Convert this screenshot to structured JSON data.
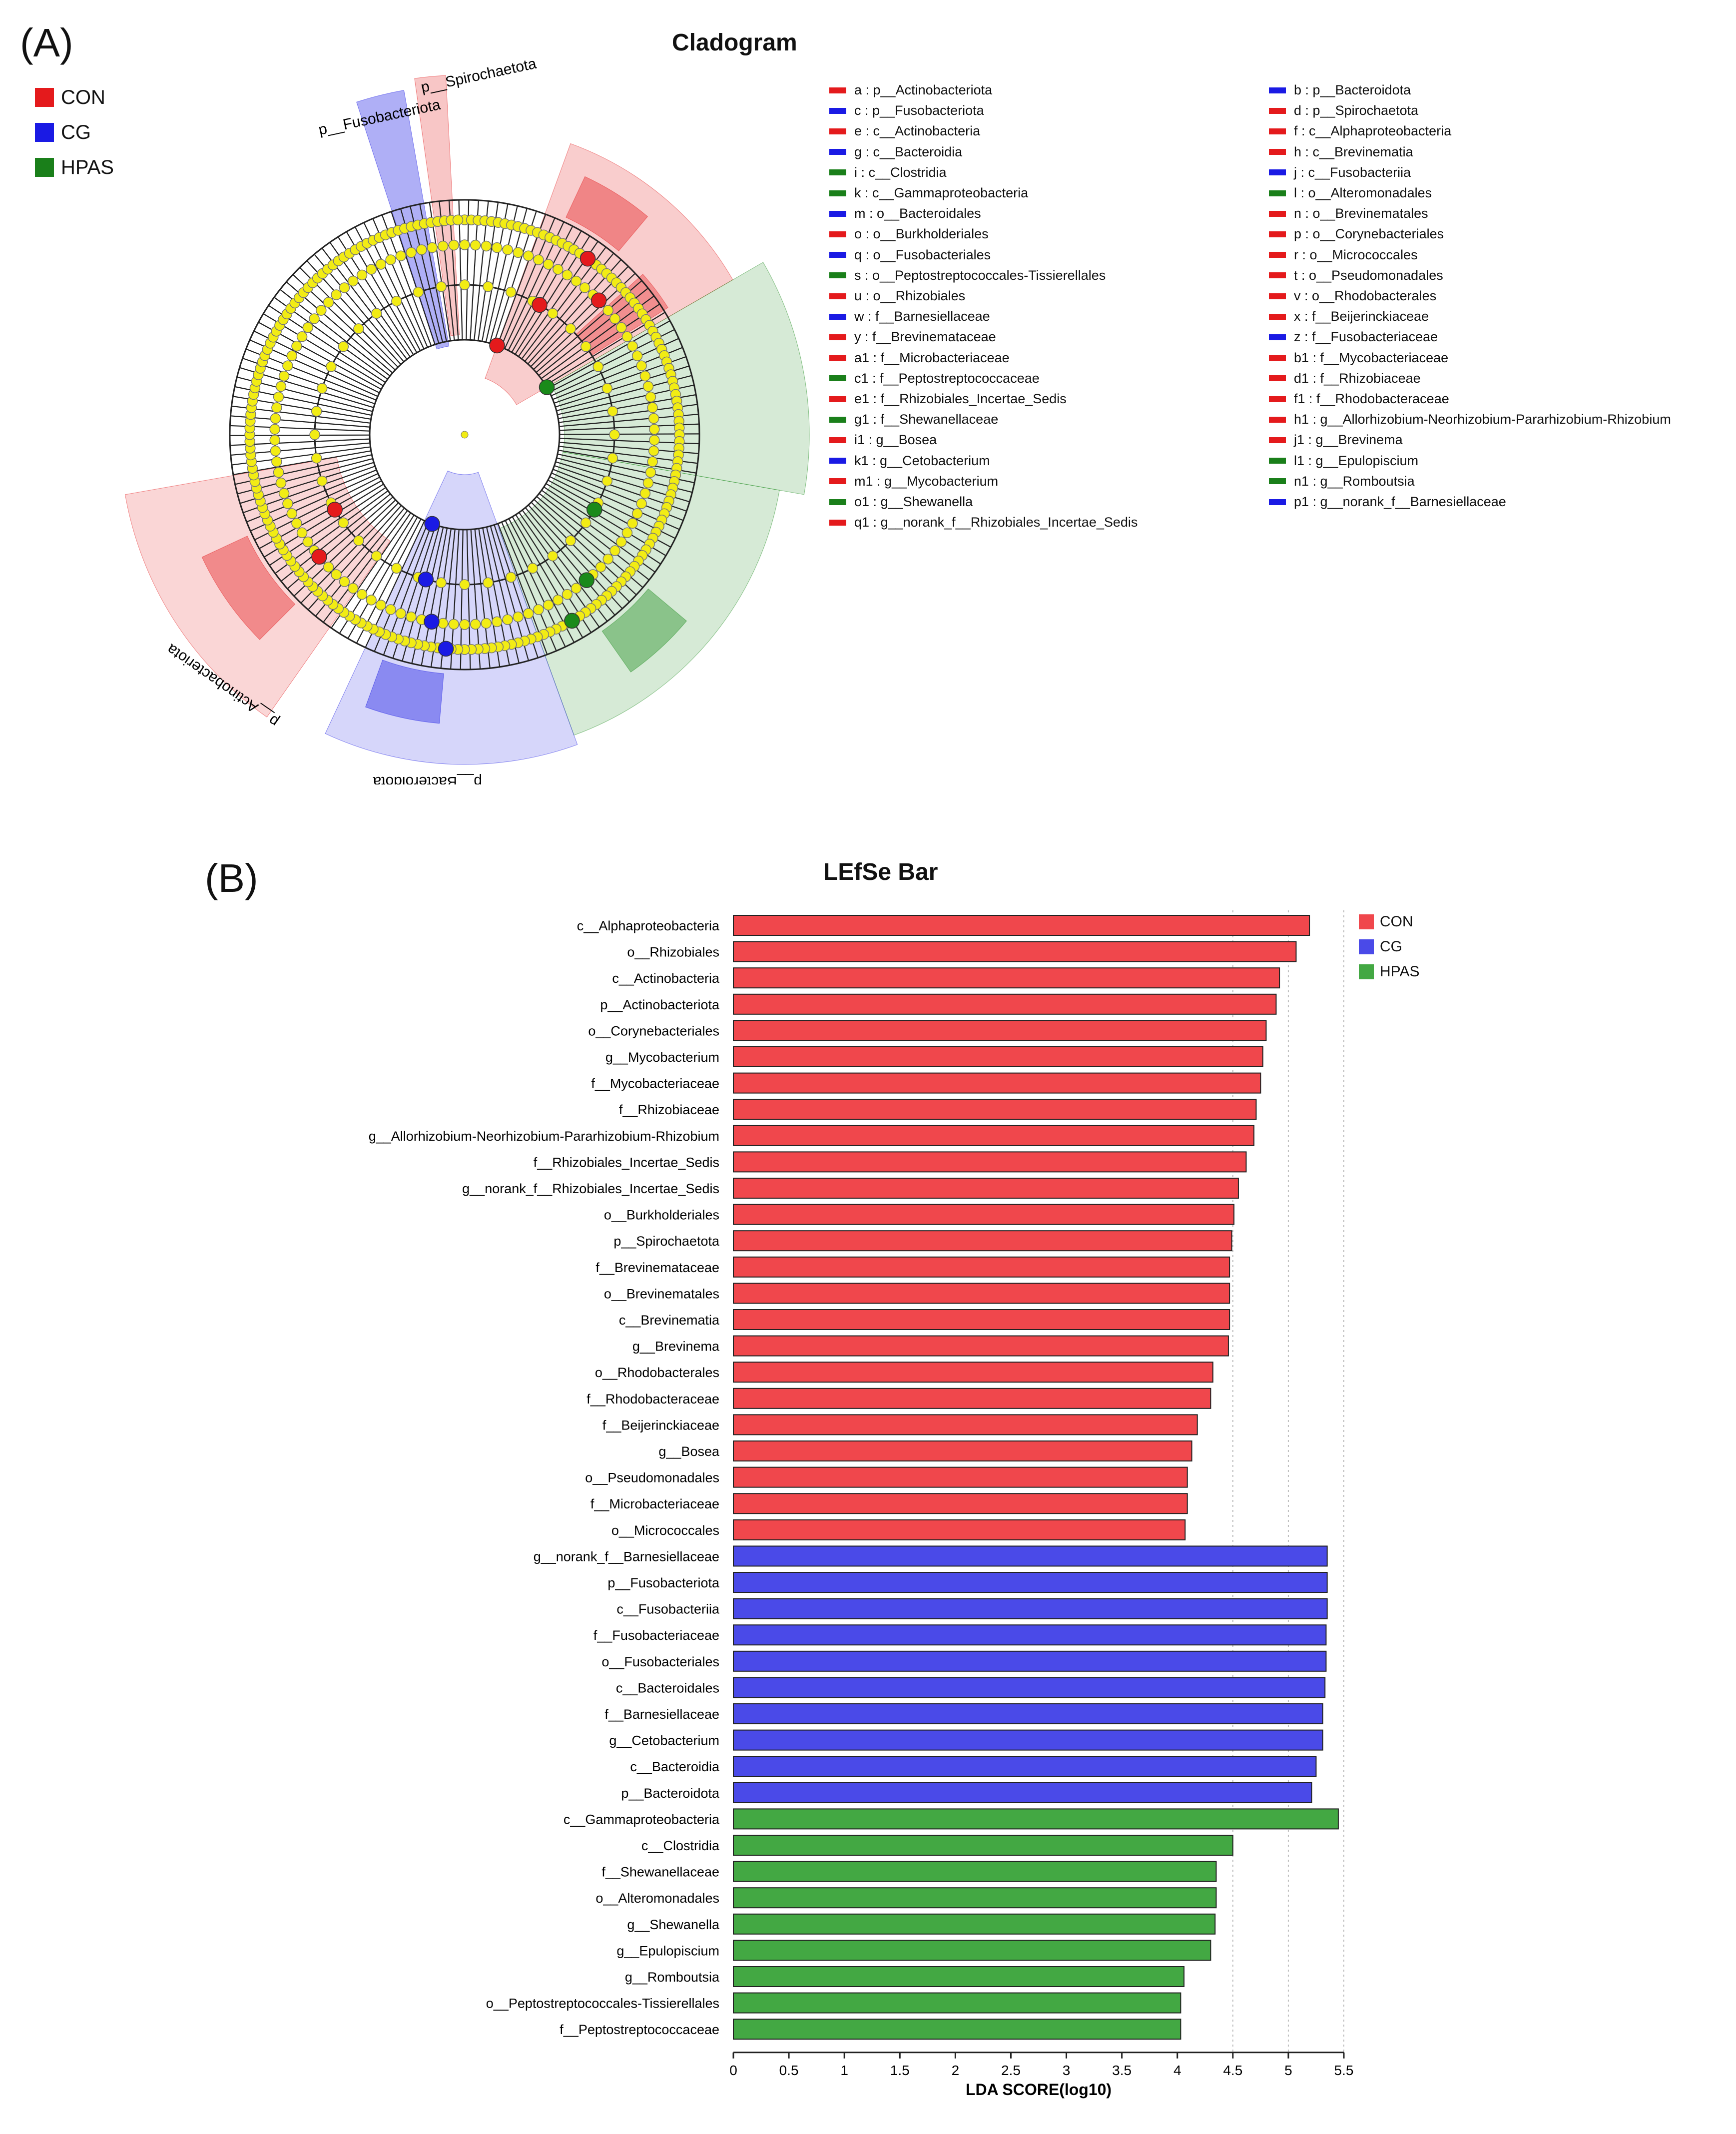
{
  "panel_a": {
    "label": "(A)",
    "title": "Cladogram",
    "groups": [
      {
        "name": "CON",
        "color": "#e41a1c"
      },
      {
        "name": "CG",
        "color": "#1a1ae4"
      },
      {
        "name": "HPAS",
        "color": "#1a7f1a"
      }
    ],
    "key_left": [
      {
        "text": "a : p__Actinobacteriota",
        "group": "CON"
      },
      {
        "text": "c : p__Fusobacteriota",
        "group": "CG"
      },
      {
        "text": "e : c__Actinobacteria",
        "group": "CON"
      },
      {
        "text": "g : c__Bacteroidia",
        "group": "CG"
      },
      {
        "text": "i : c__Clostridia",
        "group": "HPAS"
      },
      {
        "text": "k : c__Gammaproteobacteria",
        "group": "HPAS"
      },
      {
        "text": "m : o__Bacteroidales",
        "group": "CG"
      },
      {
        "text": "o : o__Burkholderiales",
        "group": "CON"
      },
      {
        "text": "q : o__Fusobacteriales",
        "group": "CG"
      },
      {
        "text": "s : o__Peptostreptococcales-Tissierellales",
        "group": "HPAS"
      },
      {
        "text": "u : o__Rhizobiales",
        "group": "CON"
      },
      {
        "text": "w : f__Barnesiellaceae",
        "group": "CG"
      },
      {
        "text": "y : f__Brevinemataceae",
        "group": "CON"
      },
      {
        "text": "a1 : f__Microbacteriaceae",
        "group": "CON"
      },
      {
        "text": "c1 : f__Peptostreptococcaceae",
        "group": "HPAS"
      },
      {
        "text": "e1 : f__Rhizobiales_Incertae_Sedis",
        "group": "CON"
      },
      {
        "text": "g1 : f__Shewanellaceae",
        "group": "HPAS"
      },
      {
        "text": "i1 : g__Bosea",
        "group": "CON"
      },
      {
        "text": "k1 : g__Cetobacterium",
        "group": "CG"
      },
      {
        "text": "m1 : g__Mycobacterium",
        "group": "CON"
      },
      {
        "text": "o1 : g__Shewanella",
        "group": "HPAS"
      },
      {
        "text": "q1 : g__norank_f__Rhizobiales_Incertae_Sedis",
        "group": "CON"
      }
    ],
    "key_right": [
      {
        "text": "b : p__Bacteroidota",
        "group": "CG"
      },
      {
        "text": "d : p__Spirochaetota",
        "group": "CON"
      },
      {
        "text": "f : c__Alphaproteobacteria",
        "group": "CON"
      },
      {
        "text": "h : c__Brevinematia",
        "group": "CON"
      },
      {
        "text": "j : c__Fusobacteriia",
        "group": "CG"
      },
      {
        "text": "l : o__Alteromonadales",
        "group": "HPAS"
      },
      {
        "text": "n : o__Brevinematales",
        "group": "CON"
      },
      {
        "text": "p : o__Corynebacteriales",
        "group": "CON"
      },
      {
        "text": "r : o__Micrococcales",
        "group": "CON"
      },
      {
        "text": "t : o__Pseudomonadales",
        "group": "CON"
      },
      {
        "text": "v : o__Rhodobacterales",
        "group": "CON"
      },
      {
        "text": "x : f__Beijerinckiaceae",
        "group": "CON"
      },
      {
        "text": "z : f__Fusobacteriaceae",
        "group": "CG"
      },
      {
        "text": "b1 : f__Mycobacteriaceae",
        "group": "CON"
      },
      {
        "text": "d1 : f__Rhizobiaceae",
        "group": "CON"
      },
      {
        "text": "f1 : f__Rhodobacteraceae",
        "group": "CON"
      },
      {
        "text": "h1 : g__Allorhizobium-Neorhizobium-Pararhizobium-Rhizobium",
        "group": "CON"
      },
      {
        "text": "j1 : g__Brevinema",
        "group": "CON"
      },
      {
        "text": "l1 : g__Epulopiscium",
        "group": "HPAS"
      },
      {
        "text": "n1 : g__Romboutsia",
        "group": "HPAS"
      },
      {
        "text": "p1 : g__norank_f__Barnesiellaceae",
        "group": "CG"
      }
    ],
    "clade_labels": {
      "spirochaetota": "p__Spirochaetota",
      "fusobacteriota": "p__Fusobacteriota",
      "actinobacteriota": "p__Actinobacteriota",
      "bacteroidota": "p__Bacteroidota"
    }
  },
  "panel_b": {
    "label": "(B)",
    "title": "LEfSe Bar"
  },
  "chart_data": {
    "type": "bar",
    "orientation": "horizontal",
    "title": "LEfSe Bar",
    "xlabel": "LDA SCORE(log10)",
    "xlim": [
      0,
      5.5
    ],
    "xticks": [
      "0",
      "0.5",
      "1",
      "1.5",
      "2",
      "2.5",
      "3",
      "3.5",
      "4",
      "4.5",
      "5",
      "5.5"
    ],
    "legend": [
      "CON",
      "CG",
      "HPAS"
    ],
    "colors": {
      "CON": "#f0474c",
      "CG": "#4a4ae8",
      "HPAS": "#43a843"
    },
    "bars": [
      {
        "label": "c__Alphaproteobacteria",
        "value": 5.19,
        "group": "CON"
      },
      {
        "label": "o__Rhizobiales",
        "value": 5.07,
        "group": "CON"
      },
      {
        "label": "c__Actinobacteria",
        "value": 4.92,
        "group": "CON"
      },
      {
        "label": "p__Actinobacteriota",
        "value": 4.89,
        "group": "CON"
      },
      {
        "label": "o__Corynebacteriales",
        "value": 4.8,
        "group": "CON"
      },
      {
        "label": "g__Mycobacterium",
        "value": 4.77,
        "group": "CON"
      },
      {
        "label": "f__Mycobacteriaceae",
        "value": 4.75,
        "group": "CON"
      },
      {
        "label": "f__Rhizobiaceae",
        "value": 4.71,
        "group": "CON"
      },
      {
        "label": "g__Allorhizobium-Neorhizobium-Pararhizobium-Rhizobium",
        "value": 4.69,
        "group": "CON"
      },
      {
        "label": "f__Rhizobiales_Incertae_Sedis",
        "value": 4.62,
        "group": "CON"
      },
      {
        "label": "g__norank_f__Rhizobiales_Incertae_Sedis",
        "value": 4.55,
        "group": "CON"
      },
      {
        "label": "o__Burkholderiales",
        "value": 4.51,
        "group": "CON"
      },
      {
        "label": "p__Spirochaetota",
        "value": 4.49,
        "group": "CON"
      },
      {
        "label": "f__Brevinemataceae",
        "value": 4.47,
        "group": "CON"
      },
      {
        "label": "o__Brevinematales",
        "value": 4.47,
        "group": "CON"
      },
      {
        "label": "c__Brevinematia",
        "value": 4.47,
        "group": "CON"
      },
      {
        "label": "g__Brevinema",
        "value": 4.46,
        "group": "CON"
      },
      {
        "label": "o__Rhodobacterales",
        "value": 4.32,
        "group": "CON"
      },
      {
        "label": "f__Rhodobacteraceae",
        "value": 4.3,
        "group": "CON"
      },
      {
        "label": "f__Beijerinckiaceae",
        "value": 4.18,
        "group": "CON"
      },
      {
        "label": "g__Bosea",
        "value": 4.13,
        "group": "CON"
      },
      {
        "label": "o__Pseudomonadales",
        "value": 4.09,
        "group": "CON"
      },
      {
        "label": "f__Microbacteriaceae",
        "value": 4.09,
        "group": "CON"
      },
      {
        "label": "o__Micrococcales",
        "value": 4.07,
        "group": "CON"
      },
      {
        "label": "g__norank_f__Barnesiellaceae",
        "value": 5.35,
        "group": "CG"
      },
      {
        "label": "p__Fusobacteriota",
        "value": 5.35,
        "group": "CG"
      },
      {
        "label": "c__Fusobacteriia",
        "value": 5.35,
        "group": "CG"
      },
      {
        "label": "f__Fusobacteriaceae",
        "value": 5.34,
        "group": "CG"
      },
      {
        "label": "o__Fusobacteriales",
        "value": 5.34,
        "group": "CG"
      },
      {
        "label": "c__Bacteroidales",
        "value": 5.33,
        "group": "CG"
      },
      {
        "label": "f__Barnesiellaceae",
        "value": 5.31,
        "group": "CG"
      },
      {
        "label": "g__Cetobacterium",
        "value": 5.31,
        "group": "CG"
      },
      {
        "label": "c__Bacteroidia",
        "value": 5.25,
        "group": "CG"
      },
      {
        "label": "p__Bacteroidota",
        "value": 5.21,
        "group": "CG"
      },
      {
        "label": "c__Gammaproteobacteria",
        "value": 5.45,
        "group": "HPAS"
      },
      {
        "label": "c__Clostridia",
        "value": 4.5,
        "group": "HPAS"
      },
      {
        "label": "f__Shewanellaceae",
        "value": 4.35,
        "group": "HPAS"
      },
      {
        "label": "o__Alteromonadales",
        "value": 4.35,
        "group": "HPAS"
      },
      {
        "label": "g__Shewanella",
        "value": 4.34,
        "group": "HPAS"
      },
      {
        "label": "g__Epulopiscium",
        "value": 4.3,
        "group": "HPAS"
      },
      {
        "label": "g__Romboutsia",
        "value": 4.06,
        "group": "HPAS"
      },
      {
        "label": "o__Peptostreptococcales-Tissierellales",
        "value": 4.03,
        "group": "HPAS"
      },
      {
        "label": "f__Peptostreptococcaceae",
        "value": 4.03,
        "group": "HPAS"
      }
    ]
  }
}
